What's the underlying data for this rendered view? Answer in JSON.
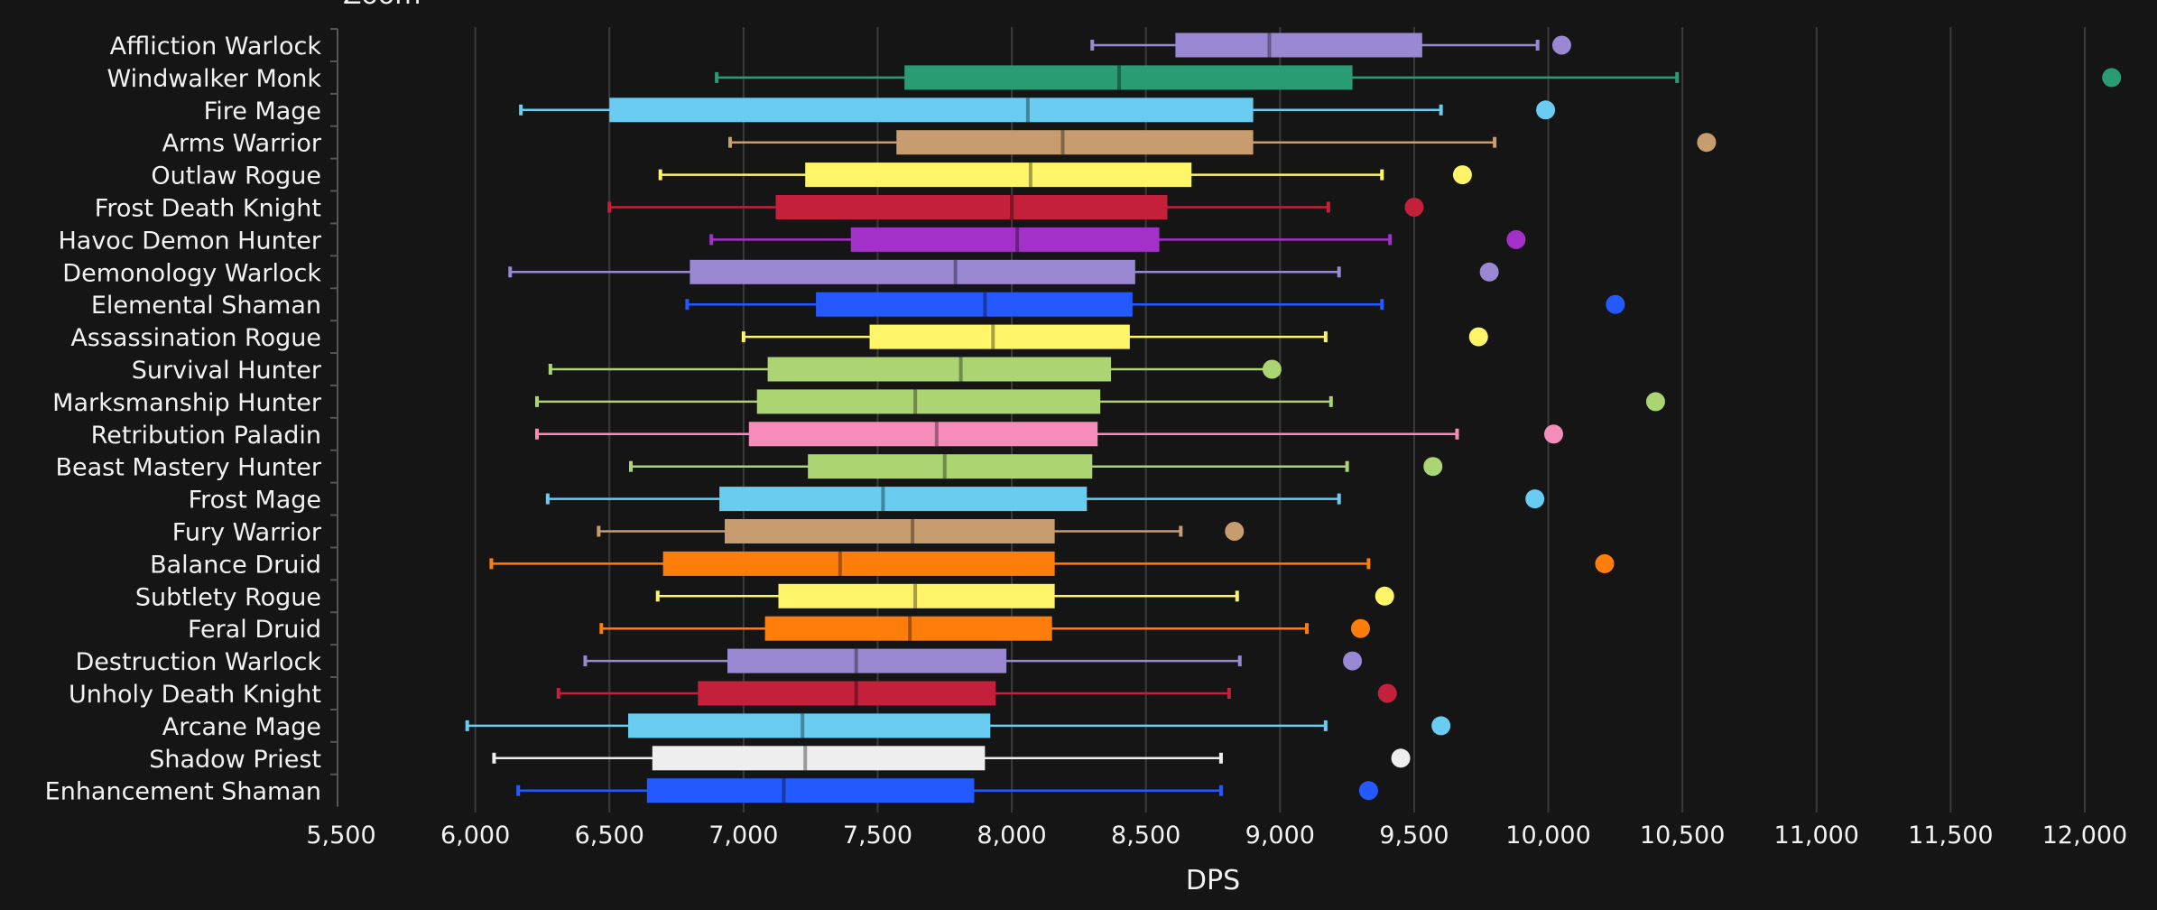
{
  "header": {
    "zoom_label": "Zoom"
  },
  "chart_data": {
    "type": "boxplot",
    "title": "",
    "xlabel": "DPS",
    "ylabel": "",
    "xlim": [
      5500,
      12000
    ],
    "xticks": [
      5500,
      6000,
      6500,
      7000,
      7500,
      8000,
      8500,
      9000,
      9500,
      10000,
      10500,
      11000,
      11500,
      12000
    ],
    "xtick_labels": [
      "5,500",
      "6,000",
      "6,500",
      "7,000",
      "7,500",
      "8,000",
      "8,500",
      "9,000",
      "9,500",
      "10,000",
      "10,500",
      "11,000",
      "11,500",
      "12,000"
    ],
    "grid": "vertical",
    "series": [
      {
        "name": "Affliction Warlock",
        "min": 8300,
        "q1": 8610,
        "median": 8960,
        "q3": 9530,
        "max": 9960,
        "outlier": 10050,
        "color": "#9a88d2"
      },
      {
        "name": "Windwalker Monk",
        "min": 6900,
        "q1": 7600,
        "median": 8400,
        "q3": 9270,
        "max": 10480,
        "outlier": 12100,
        "color": "#2a9c74"
      },
      {
        "name": "Fire Mage",
        "min": 6170,
        "q1": 6500,
        "median": 8060,
        "q3": 8900,
        "max": 9600,
        "outlier": 9990,
        "color": "#69ccf0"
      },
      {
        "name": "Arms Warrior",
        "min": 6950,
        "q1": 7570,
        "median": 8190,
        "q3": 8900,
        "max": 9800,
        "outlier": 10590,
        "color": "#c79c6e"
      },
      {
        "name": "Outlaw Rogue",
        "min": 6690,
        "q1": 7230,
        "median": 8070,
        "q3": 8670,
        "max": 9380,
        "outlier": 9680,
        "color": "#fff569"
      },
      {
        "name": "Frost Death Knight",
        "min": 6500,
        "q1": 7120,
        "median": 8000,
        "q3": 8580,
        "max": 9180,
        "outlier": 9500,
        "color": "#c41f3b"
      },
      {
        "name": "Havoc Demon Hunter",
        "min": 6880,
        "q1": 7400,
        "median": 8020,
        "q3": 8550,
        "max": 9410,
        "outlier": 9880,
        "color": "#a330c9"
      },
      {
        "name": "Demonology Warlock",
        "min": 6130,
        "q1": 6800,
        "median": 7790,
        "q3": 8460,
        "max": 9220,
        "outlier": 9780,
        "color": "#9a88d2"
      },
      {
        "name": "Elemental Shaman",
        "min": 6790,
        "q1": 7270,
        "median": 7900,
        "q3": 8450,
        "max": 9380,
        "outlier": 10250,
        "color": "#2459ff"
      },
      {
        "name": "Assassination Rogue",
        "min": 7000,
        "q1": 7470,
        "median": 7930,
        "q3": 8440,
        "max": 9170,
        "outlier": 9740,
        "color": "#fff569"
      },
      {
        "name": "Survival Hunter",
        "min": 6280,
        "q1": 7090,
        "median": 7810,
        "q3": 8370,
        "max": 8970,
        "outlier": 8970,
        "color": "#abd473"
      },
      {
        "name": "Marksmanship Hunter",
        "min": 6230,
        "q1": 7050,
        "median": 7640,
        "q3": 8330,
        "max": 9190,
        "outlier": 10400,
        "color": "#abd473"
      },
      {
        "name": "Retribution Paladin",
        "min": 6230,
        "q1": 7020,
        "median": 7720,
        "q3": 8320,
        "max": 9660,
        "outlier": 10020,
        "color": "#f58cba"
      },
      {
        "name": "Beast Mastery Hunter",
        "min": 6580,
        "q1": 7240,
        "median": 7750,
        "q3": 8300,
        "max": 9250,
        "outlier": 9570,
        "color": "#abd473"
      },
      {
        "name": "Frost Mage",
        "min": 6270,
        "q1": 6910,
        "median": 7520,
        "q3": 8280,
        "max": 9220,
        "outlier": 9950,
        "color": "#69ccf0"
      },
      {
        "name": "Fury Warrior",
        "min": 6460,
        "q1": 6930,
        "median": 7630,
        "q3": 8160,
        "max": 8630,
        "outlier": 8830,
        "color": "#c79c6e"
      },
      {
        "name": "Balance Druid",
        "min": 6060,
        "q1": 6700,
        "median": 7360,
        "q3": 8160,
        "max": 9330,
        "outlier": 10210,
        "color": "#ff7d0a"
      },
      {
        "name": "Subtlety Rogue",
        "min": 6680,
        "q1": 7130,
        "median": 7640,
        "q3": 8160,
        "max": 8840,
        "outlier": 9390,
        "color": "#fff569"
      },
      {
        "name": "Feral Druid",
        "min": 6470,
        "q1": 7080,
        "median": 7620,
        "q3": 8150,
        "max": 9100,
        "outlier": 9300,
        "color": "#ff7d0a"
      },
      {
        "name": "Destruction Warlock",
        "min": 6410,
        "q1": 6940,
        "median": 7420,
        "q3": 7980,
        "max": 8850,
        "outlier": 9270,
        "color": "#9a88d2"
      },
      {
        "name": "Unholy Death Knight",
        "min": 6310,
        "q1": 6830,
        "median": 7420,
        "q3": 7940,
        "max": 8810,
        "outlier": 9400,
        "color": "#c41f3b"
      },
      {
        "name": "Arcane Mage",
        "min": 5970,
        "q1": 6570,
        "median": 7220,
        "q3": 7920,
        "max": 9170,
        "outlier": 9600,
        "color": "#69ccf0"
      },
      {
        "name": "Shadow Priest",
        "min": 6070,
        "q1": 6660,
        "median": 7230,
        "q3": 7900,
        "max": 8780,
        "outlier": 9450,
        "color": "#eeeeee"
      },
      {
        "name": "Enhancement Shaman",
        "min": 6160,
        "q1": 6640,
        "median": 7150,
        "q3": 7860,
        "max": 8780,
        "outlier": 9330,
        "color": "#2459ff"
      }
    ]
  }
}
